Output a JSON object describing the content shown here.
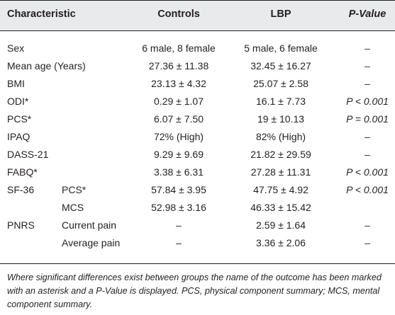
{
  "header": {
    "characteristic": "Characteristic",
    "controls": "Controls",
    "lbp": "LBP",
    "p_value": "P-Value"
  },
  "rows": [
    {
      "label": "Sex",
      "sub": "",
      "controls": "6 male, 8 female",
      "lbp": "5 male, 6 female",
      "p": "–"
    },
    {
      "label": "Mean age (Years)",
      "sub": "",
      "controls": "27.36 ± 11.38",
      "lbp": "32.45 ± 16.27",
      "p": "–"
    },
    {
      "label": "BMI",
      "sub": "",
      "controls": "23.13 ± 4.32",
      "lbp": "25.07 ± 2.58",
      "p": "–"
    },
    {
      "label": "ODI*",
      "sub": "",
      "controls": "0.29 ± 1.07",
      "lbp": "16.1 ± 7.73",
      "p": "P < 0.001"
    },
    {
      "label": "PCS*",
      "sub": "",
      "controls": "6.07 ± 7.50",
      "lbp": "19 ± 10.13",
      "p": "P = 0.001"
    },
    {
      "label": "IPAQ",
      "sub": "",
      "controls": "72% (High)",
      "lbp": "82% (High)",
      "p": "–"
    },
    {
      "label": "DASS-21",
      "sub": "",
      "controls": "9.29 ± 9.69",
      "lbp": "21.82 ± 29.59",
      "p": "–"
    },
    {
      "label": "FABQ*",
      "sub": "",
      "controls": "3.38 ± 6.31",
      "lbp": "27.28 ± 11.31",
      "p": "P < 0.001"
    },
    {
      "label": "SF-36",
      "sub": "PCS*",
      "controls": "57.84 ± 3.95",
      "lbp": "47.75 ± 4.92",
      "p": "P < 0.001"
    },
    {
      "label": "",
      "sub": "MCS",
      "controls": "52.98 ± 3.16",
      "lbp": "46.33 ± 15.42",
      "p": ""
    },
    {
      "label": "PNRS",
      "sub": "Current pain",
      "controls": "–",
      "lbp": "2.59 ± 1.64",
      "p": "–"
    },
    {
      "label": "",
      "sub": "Average pain",
      "controls": "–",
      "lbp": "3.36 ± 2.06",
      "p": "–"
    }
  ],
  "footnote": "Where significant differences exist between groups the name of the outcome has been marked with an asterisk and a P-Value is displayed. PCS, physical component summary; MCS, mental component summary."
}
